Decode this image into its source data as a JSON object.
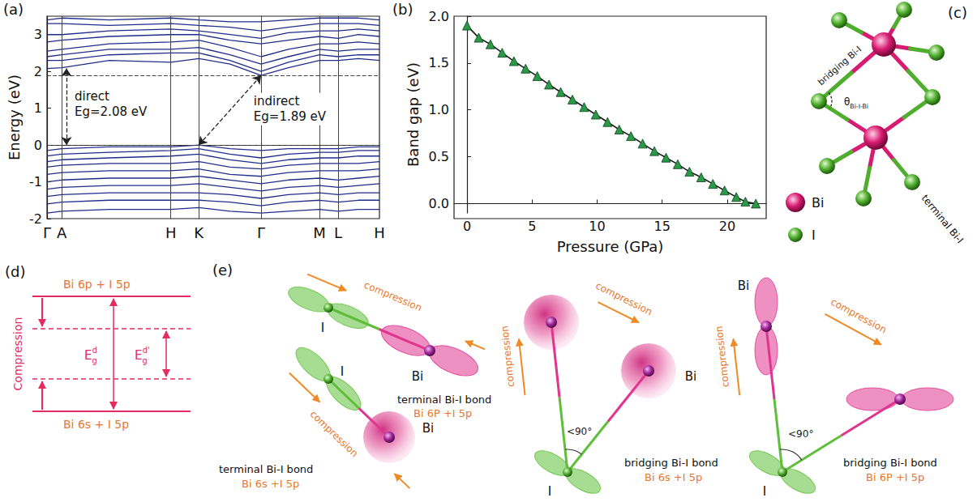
{
  "chart_data": [
    {
      "panel": "(a)",
      "type": "line",
      "color": "#1f2d8c",
      "marker": "none",
      "grid": "x",
      "y_label": "Energy (eV)",
      "x": [
        0,
        1.9,
        8,
        15.9,
        19.5,
        23.5,
        27.5,
        31,
        35,
        37.4,
        40,
        42.7
      ],
      "series": [
        {
          "values": [
            2.08,
            2.1,
            2.3,
            2.25,
            2.35,
            2.2,
            1.89,
            2.1,
            2.3,
            2.3,
            2.35,
            2.3
          ]
        },
        {
          "values": [
            2.3,
            2.3,
            2.45,
            2.5,
            2.5,
            2.3,
            2.0,
            2.25,
            2.45,
            2.4,
            2.45,
            2.45
          ]
        },
        {
          "values": [
            2.4,
            2.45,
            2.6,
            2.6,
            2.65,
            2.45,
            2.2,
            2.4,
            2.6,
            2.55,
            2.6,
            2.6
          ]
        },
        {
          "values": [
            2.55,
            2.6,
            2.75,
            2.8,
            2.85,
            2.65,
            2.4,
            2.6,
            2.75,
            2.75,
            2.8,
            2.75
          ]
        },
        {
          "values": [
            2.8,
            2.85,
            2.95,
            3.0,
            3.0,
            2.85,
            2.75,
            2.85,
            2.95,
            2.9,
            3.0,
            2.95
          ]
        },
        {
          "values": [
            3.0,
            3.0,
            3.1,
            3.15,
            3.1,
            3.0,
            2.9,
            3.05,
            3.1,
            3.1,
            3.15,
            3.1
          ]
        },
        {
          "values": [
            3.3,
            3.3,
            3.25,
            3.3,
            3.25,
            3.2,
            3.1,
            3.2,
            3.3,
            3.3,
            3.3,
            3.25
          ]
        },
        {
          "values": [
            3.4,
            3.45,
            3.4,
            3.45,
            3.4,
            3.35,
            3.35,
            3.4,
            3.45,
            3.45,
            3.45,
            3.4
          ]
        },
        {
          "values": [
            -0.15,
            -0.1,
            -0.05,
            -0.05,
            0,
            -0.1,
            -0.15,
            -0.1,
            -0.1,
            -0.1,
            -0.05,
            -0.05
          ]
        },
        {
          "values": [
            -0.3,
            -0.25,
            -0.2,
            -0.15,
            -0.1,
            -0.25,
            -0.35,
            -0.25,
            -0.2,
            -0.2,
            -0.15,
            -0.15
          ]
        },
        {
          "values": [
            -0.45,
            -0.4,
            -0.35,
            -0.3,
            -0.25,
            -0.4,
            -0.5,
            -0.4,
            -0.35,
            -0.35,
            -0.3,
            -0.3
          ]
        },
        {
          "values": [
            -0.6,
            -0.55,
            -0.5,
            -0.5,
            -0.45,
            -0.6,
            -0.65,
            -0.55,
            -0.5,
            -0.5,
            -0.5,
            -0.45
          ]
        },
        {
          "values": [
            -0.8,
            -0.75,
            -0.7,
            -0.7,
            -0.65,
            -0.8,
            -0.85,
            -0.75,
            -0.7,
            -0.7,
            -0.7,
            -0.65
          ]
        },
        {
          "values": [
            -1.0,
            -0.95,
            -0.9,
            -0.9,
            -0.85,
            -0.95,
            -1.05,
            -0.95,
            -0.9,
            -0.95,
            -0.9,
            -0.85
          ]
        },
        {
          "values": [
            -1.2,
            -1.15,
            -1.1,
            -1.1,
            -1.05,
            -1.15,
            -1.25,
            -1.15,
            -1.1,
            -1.15,
            -1.1,
            -1.05
          ]
        },
        {
          "values": [
            -1.4,
            -1.35,
            -1.3,
            -1.3,
            -1.3,
            -1.35,
            -1.45,
            -1.35,
            -1.3,
            -1.35,
            -1.3,
            -1.3
          ]
        },
        {
          "values": [
            -1.6,
            -1.55,
            -1.5,
            -1.5,
            -1.5,
            -1.55,
            -1.65,
            -1.55,
            -1.5,
            -1.55,
            -1.5,
            -1.5
          ]
        },
        {
          "values": [
            -1.85,
            -1.8,
            -1.75,
            -1.75,
            -1.7,
            -1.8,
            -1.85,
            -1.8,
            -1.75,
            -1.8,
            -1.75,
            -1.75
          ]
        }
      ],
      "xlim": [
        0,
        42.7
      ],
      "xticks": [
        {
          "value": 0,
          "label": "Γ"
        },
        {
          "value": 1.9,
          "label": "A"
        },
        {
          "value": 15.9,
          "label": "H"
        },
        {
          "value": 19.5,
          "label": "K"
        },
        {
          "value": 27.5,
          "label": "Γ"
        },
        {
          "value": 35,
          "label": "M"
        },
        {
          "value": 37.4,
          "label": "L"
        },
        {
          "value": 42.7,
          "label": "H"
        }
      ],
      "ylim": [
        -2,
        3.5
      ],
      "yticks": [
        -2,
        -1,
        0,
        1,
        2,
        3
      ],
      "annotations": [
        {
          "type": "hline",
          "y": 0
        },
        {
          "type": "hline",
          "y": 1.89
        },
        {
          "type": "arrow",
          "from": [
            2.5,
            0
          ],
          "to": [
            2.5,
            2.08
          ],
          "text": [
            "direct",
            "Eg=2.08 eV"
          ]
        },
        {
          "type": "arrow",
          "from": [
            19.5,
            0
          ],
          "to": [
            27.5,
            1.89
          ],
          "text": [
            "indirect",
            "Eg=1.89 eV"
          ]
        }
      ]
    },
    {
      "panel": "(b)",
      "type": "line",
      "grid": false,
      "x_label": "Pressure (GPa)",
      "y_label": "Band gap (eV)",
      "x": [
        0,
        0.9,
        1.8,
        2.7,
        3.6,
        4.5,
        5.4,
        6.3,
        7.2,
        8.1,
        9.0,
        9.9,
        10.8,
        11.7,
        12.6,
        13.5,
        14.4,
        15.3,
        16.2,
        17.1,
        18.0,
        18.9,
        19.8,
        20.7,
        21.4,
        22.2
      ],
      "series": [
        {
          "color": "#2a9a48",
          "marker": "triangle",
          "values": [
            1.9,
            1.77,
            1.7,
            1.61,
            1.52,
            1.44,
            1.36,
            1.27,
            1.19,
            1.11,
            1.03,
            0.95,
            0.87,
            0.79,
            0.72,
            0.64,
            0.56,
            0.49,
            0.42,
            0.34,
            0.28,
            0.21,
            0.14,
            0.07,
            0.02,
            0
          ]
        }
      ],
      "xlim": [
        -1,
        23
      ],
      "xticks": [
        0,
        5,
        10,
        15,
        20
      ],
      "ylim": [
        -0.1,
        2.0
      ],
      "yticks": [
        {
          "value": 0,
          "label": "0.0"
        },
        {
          "value": 0.5,
          "label": "0.5"
        },
        {
          "value": 1,
          "label": "1.0"
        },
        {
          "value": 1.5,
          "label": "1.5"
        },
        {
          "value": 2,
          "label": "2.0"
        }
      ]
    }
  ],
  "structure": {
    "panel": "(c)",
    "bridging_label": "bridging Bi-I",
    "terminal_label": "terminal Bi-I",
    "angle_label": [
      "θ",
      "Bi-I-Bi"
    ],
    "legend": [
      {
        "label": "Bi",
        "color": "#d81b72"
      },
      {
        "label": "I",
        "color": "#4fae2e"
      }
    ]
  },
  "levels": {
    "panel": "(d)",
    "upper_level": "Bi 6p + I 5p",
    "lower_level": "Bi 6s + I 5p",
    "arrow_label": "Compression",
    "gap": [
      "E",
      "g",
      "d"
    ],
    "gap_compressed": [
      "E",
      "g",
      "d'"
    ]
  },
  "orbitals": {
    "panel": "(e)",
    "diagrams": [
      {
        "bond_label": "terminal Bi-I bond",
        "orbital_label": "Bi 6P +I 5p",
        "atoms": [
          "I",
          "Bi"
        ],
        "arrow_labels": [
          "compression"
        ]
      },
      {
        "bond_label": "terminal Bi-I bond",
        "orbital_label": "Bi 6s +I 5p",
        "atoms": [
          "I",
          "Bi"
        ],
        "arrow_labels": [
          "compression"
        ]
      },
      {
        "bond_label": "bridging Bi-I bond",
        "orbital_label": "Bi 6s +I 5p",
        "atoms": [
          "I",
          "Bi"
        ],
        "arrow_labels": [
          "compression",
          "compression"
        ],
        "angle_label": "<90°"
      },
      {
        "bond_label": "bridging Bi-I bond",
        "orbital_label": "Bi 6P +I 5p",
        "atoms": [
          "I",
          "Bi"
        ],
        "arrow_labels": [
          "compression",
          "compression"
        ],
        "angle_label": "<90°"
      }
    ]
  }
}
